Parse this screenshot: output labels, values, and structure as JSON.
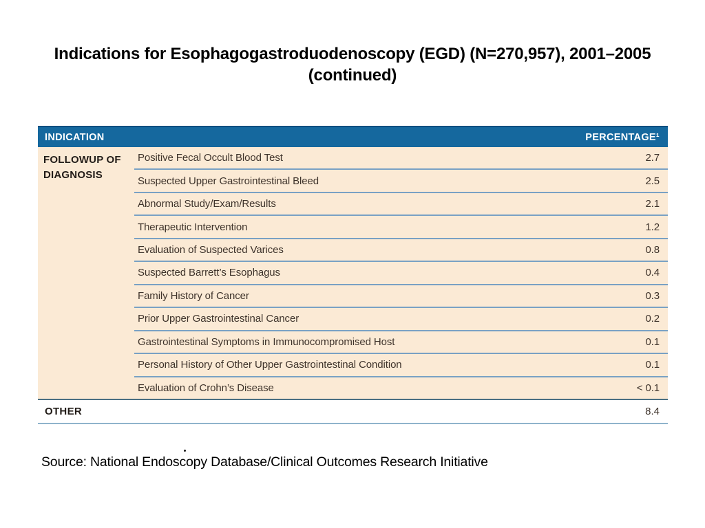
{
  "title": "Indications for Esophagogastroduodenoscopy (EGD) (N=270,957), 2001–2005 (continued)",
  "table": {
    "header": {
      "indication": "INDICATION",
      "percentage": "PERCENTAGE¹"
    },
    "category_group": {
      "label": "FOLLOWUP OF DIAGNOSIS"
    },
    "rows": [
      {
        "label": "Positive Fecal Occult Blood Test",
        "value": "2.7"
      },
      {
        "label": "Suspected Upper Gastrointestinal Bleed",
        "value": "2.5"
      },
      {
        "label": "Abnormal Study/Exam/Results",
        "value": "2.1"
      },
      {
        "label": "Therapeutic Intervention",
        "value": "1.2"
      },
      {
        "label": "Evaluation of Suspected Varices",
        "value": "0.8"
      },
      {
        "label": "Suspected Barrett’s Esophagus",
        "value": "0.4"
      },
      {
        "label": "Family History of Cancer",
        "value": "0.3"
      },
      {
        "label": "Prior Upper Gastrointestinal Cancer",
        "value": "0.2"
      },
      {
        "label": "Gastrointestinal Symptoms in Immunocompromised Host",
        "value": "0.1"
      },
      {
        "label": "Personal History of Other Upper Gastrointestinal Condition",
        "value": "0.1"
      },
      {
        "label": "Evaluation of Crohn’s Disease",
        "value": "< 0.1"
      }
    ],
    "other_row": {
      "label": "OTHER",
      "value": "8.4"
    }
  },
  "stray_mark": ".",
  "source": "Source: National Endoscopy Database/Clinical Outcomes Research Initiative",
  "colors": {
    "header_bg": "#15689E",
    "row_bg": "#FBEAD5",
    "separator": "#79A1C4",
    "dark_line": "#4A6F83",
    "bottom_line": "#8FB3CB"
  }
}
